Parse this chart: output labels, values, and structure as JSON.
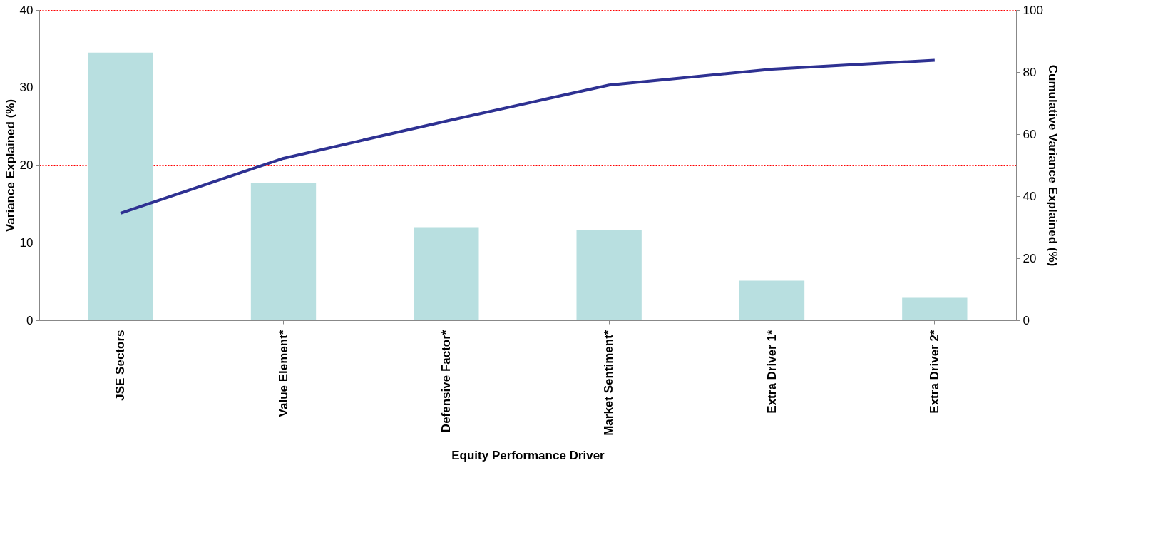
{
  "chart_data": {
    "type": "bar",
    "xlabel": "Equity Performance Driver",
    "ylabel": "Variance Explained (%)",
    "y2label": "Cumulative Variance Explained (%)",
    "categories": [
      "JSE Sectors",
      "Value Element*",
      "Defensive Factor*",
      "Market Sentiment*",
      "Extra Driver 1*",
      "Extra Driver 2*"
    ],
    "series": [
      {
        "color": "#b8dfe0",
        "values": [
          34.5,
          17.7,
          12.0,
          11.6,
          5.1,
          2.9
        ]
      },
      {
        "type": "line",
        "axis": "y2",
        "color": "#2e3192",
        "values": [
          34.5,
          52.2,
          64.2,
          75.8,
          80.9,
          83.8
        ]
      }
    ],
    "ylim": [
      0,
      40
    ],
    "yticks": [
      0,
      10,
      20,
      30,
      40
    ],
    "y2lim": [
      0,
      100
    ],
    "y2ticks": [
      0,
      20,
      40,
      60,
      80,
      100
    ],
    "grid": "y",
    "legend": false,
    "marker": "none",
    "line_style": "solid"
  }
}
